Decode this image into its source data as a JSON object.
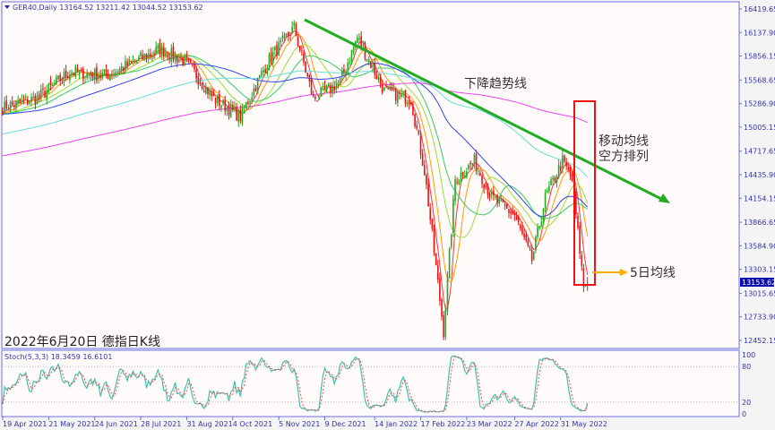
{
  "window": {
    "symbol_line": "GER40,Daily  13164.52 13211.42 13044.52 13153.62",
    "current_price": "13153.62"
  },
  "colors": {
    "bull": "#22aa22",
    "bear": "#ee1111",
    "background": "#fffbfa",
    "frame": "#6f6fe0",
    "trendline": "#22aa22",
    "highlight_box": "#ee1111",
    "arrow": "#ffaa00",
    "stoch_main": "#40c0b0",
    "stoch_signal": "#ff4444"
  },
  "chart_data": {
    "type": "candlestick",
    "title": "2022年6月20日 德指日K线",
    "ylim": [
      12452.15,
      16419.65
    ],
    "price_ticks": [
      "16419.65",
      "16137.90",
      "15856.15",
      "15568.65",
      "15286.90",
      "15005.15",
      "14717.65",
      "14435.90",
      "14154.15",
      "13866.65",
      "13584.90",
      "13303.15",
      "13015.65",
      "12733.90",
      "12452.15"
    ],
    "x_ticks": [
      "19 Apr 2021",
      "21 May 2021",
      "24 Jun 2021",
      "28 Jul 2021",
      "31 Aug 2021",
      "4 Oct 2021",
      "5 Nov 2021",
      "9 Dec 2021",
      "14 Jan 2022",
      "17 Feb 2022",
      "23 Mar 2022",
      "27 Apr 2022",
      "31 May 2022"
    ],
    "approx_close_path": [
      [
        "2021-04-19",
        15240
      ],
      [
        "2021-05-13",
        15350
      ],
      [
        "2021-06-07",
        15670
      ],
      [
        "2021-07-02",
        15620
      ],
      [
        "2021-08-11",
        15940
      ],
      [
        "2021-08-31",
        15780
      ],
      [
        "2021-09-20",
        15350
      ],
      [
        "2021-10-08",
        15130
      ],
      [
        "2021-10-28",
        15780
      ],
      [
        "2021-11-17",
        16200
      ],
      [
        "2021-12-01",
        15340
      ],
      [
        "2021-12-21",
        15550
      ],
      [
        "2022-01-03",
        16080
      ],
      [
        "2022-01-21",
        15440
      ],
      [
        "2022-02-10",
        15340
      ],
      [
        "2022-02-21",
        14480
      ],
      [
        "2022-03-07",
        12560
      ],
      [
        "2022-03-15",
        14380
      ],
      [
        "2022-03-29",
        14600
      ],
      [
        "2022-04-11",
        14160
      ],
      [
        "2022-04-27",
        13950
      ],
      [
        "2022-05-10",
        13410
      ],
      [
        "2022-05-19",
        14160
      ],
      [
        "2022-06-01",
        14600
      ],
      [
        "2022-06-08",
        14380
      ],
      [
        "2022-06-16",
        13100
      ],
      [
        "2022-06-20",
        13153.62
      ]
    ],
    "last_bar": {
      "open": 13164.52,
      "high": 13211.42,
      "low": 13044.52,
      "close": 13153.62
    },
    "moving_averages": [
      {
        "period": 5,
        "color": "#ff3333"
      },
      {
        "period": 10,
        "color": "#ff9900"
      },
      {
        "period": 20,
        "color": "#99dd33"
      },
      {
        "period": 30,
        "color": "#33cc66"
      },
      {
        "period": 60,
        "color": "#3344ee"
      },
      {
        "period": 120,
        "color": "#66dddd"
      },
      {
        "period": 250,
        "color": "#ee44ee"
      }
    ],
    "stochastic": {
      "label": "Stoch(5,3,3) 18.3459 16.6101",
      "main": 18.3459,
      "signal": 16.6101,
      "levels": [
        80,
        20
      ],
      "ticks": [
        "100",
        "80",
        "20",
        "0"
      ]
    },
    "annotations": {
      "trendline": "下降趋势线",
      "ma_line1": "移动均线",
      "ma_line2": "空方排列",
      "ma5": "5日均线"
    }
  }
}
